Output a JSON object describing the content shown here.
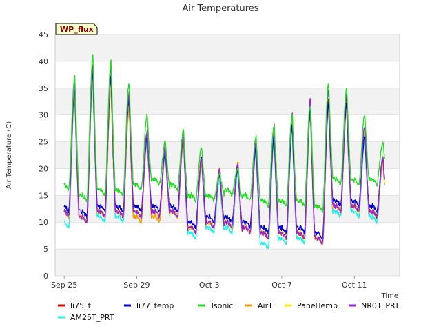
{
  "chart_data": {
    "type": "line",
    "title": "Air Temperatures",
    "xlabel": "Time",
    "ylabel": "Air Temperature (C)",
    "badge": "WP_flux",
    "ylim": [
      0,
      45
    ],
    "yticks": [
      0,
      5,
      10,
      15,
      20,
      25,
      30,
      35,
      40,
      45
    ],
    "xlim": [
      "2023-09-24T12:00",
      "2023-10-13T12:00"
    ],
    "xtick_positions": [
      "2023-09-25",
      "2023-09-29",
      "2023-10-03",
      "2023-10-07",
      "2023-10-11"
    ],
    "xtick_labels": [
      "Sep 25",
      "Sep 29",
      "Oct 3",
      "Oct 7",
      "Oct 11"
    ],
    "grid": "horizontal bands",
    "legend_position": "bottom",
    "daily_dates": [
      "2023-09-25",
      "2023-09-26",
      "2023-09-27",
      "2023-09-28",
      "2023-09-29",
      "2023-09-30",
      "2023-10-01",
      "2023-10-02",
      "2023-10-03",
      "2023-10-04",
      "2023-10-05",
      "2023-10-06",
      "2023-10-07",
      "2023-10-08",
      "2023-10-09",
      "2023-10-10",
      "2023-10-11",
      "2023-10-12"
    ],
    "series": [
      {
        "name": "li75_t",
        "color": "#dd0000",
        "daily_max": [
          36,
          39,
          37,
          33,
          27,
          24,
          26,
          22,
          20,
          21,
          25,
          27,
          29,
          32,
          33,
          33,
          27,
          22
        ],
        "daily_min": [
          11,
          10,
          11,
          11,
          11,
          11,
          11,
          8,
          9,
          9,
          8,
          7,
          7,
          7,
          6,
          12,
          12,
          11
        ]
      },
      {
        "name": "li77_temp",
        "color": "#0000cc",
        "daily_max": [
          35,
          38,
          37,
          33,
          26,
          23,
          26,
          22,
          19,
          20,
          24,
          26,
          28,
          31,
          32,
          32,
          26,
          22
        ],
        "daily_min": [
          12,
          11,
          12,
          12,
          12,
          12,
          12,
          9,
          10,
          10,
          9,
          8,
          8,
          8,
          7,
          13,
          13,
          12
        ]
      },
      {
        "name": "Tsonic",
        "color": "#22dd22",
        "daily_max": [
          37,
          41,
          40,
          36,
          30,
          25,
          27,
          24,
          19,
          20,
          26,
          28,
          30,
          32,
          36,
          35,
          30,
          25
        ],
        "daily_min": [
          16,
          14,
          15,
          15,
          16,
          17,
          16,
          14,
          14,
          15,
          14,
          13,
          13,
          13,
          12,
          17,
          17,
          17
        ]
      },
      {
        "name": "AirT",
        "color": "#ff9900",
        "daily_max": [
          34,
          37,
          35,
          31,
          26,
          23,
          25,
          21,
          19,
          20,
          24,
          26,
          28,
          30,
          31,
          31,
          26,
          21
        ],
        "daily_min": [
          11,
          10,
          11,
          11,
          10,
          10,
          11,
          8,
          9,
          9,
          8,
          7,
          7,
          7,
          6,
          12,
          12,
          11
        ]
      },
      {
        "name": "PanelTemp",
        "color": "#ffee00",
        "daily_max": [
          35,
          38,
          36,
          32,
          27,
          24,
          26,
          22,
          20,
          21,
          25,
          27,
          29,
          31,
          32,
          32,
          27,
          22
        ],
        "daily_min": [
          11,
          10,
          11,
          11,
          11,
          11,
          11,
          8,
          9,
          9,
          8,
          7,
          7,
          7,
          6,
          12,
          12,
          11
        ]
      },
      {
        "name": "NR01_PRT",
        "color": "#9922dd",
        "daily_max": [
          36,
          39,
          39,
          34,
          27,
          24,
          26,
          22,
          20,
          21,
          25,
          28,
          30,
          33,
          35,
          34,
          28,
          22
        ],
        "daily_min": [
          11,
          10,
          11,
          11,
          11,
          11,
          11,
          8,
          9,
          9,
          8,
          7,
          7,
          7,
          6,
          12,
          12,
          11
        ]
      },
      {
        "name": "AM25T_PRT",
        "color": "#22eeee",
        "daily_max": [
          33,
          36,
          35,
          31,
          25,
          22,
          25,
          21,
          18,
          19,
          23,
          25,
          27,
          30,
          31,
          31,
          25,
          21
        ],
        "daily_min": [
          9,
          10,
          10,
          10,
          11,
          11,
          11,
          7,
          8,
          8,
          8,
          5,
          6,
          6,
          6,
          11,
          11,
          10
        ]
      }
    ]
  }
}
